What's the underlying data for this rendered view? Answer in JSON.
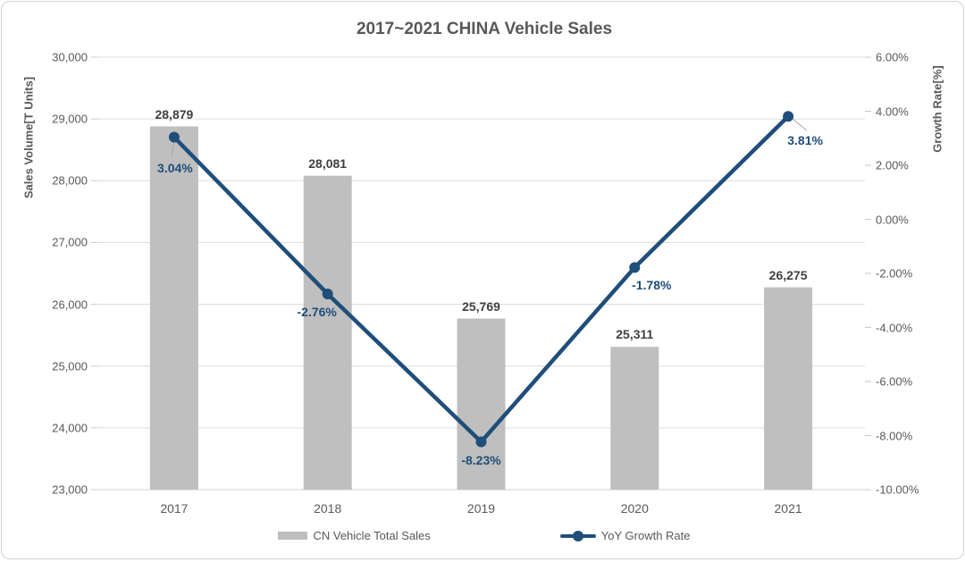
{
  "chart_data": {
    "type": "combo-bar-line",
    "title": "2017~2021 CHINA Vehicle Sales",
    "categories": [
      "2017",
      "2018",
      "2019",
      "2020",
      "2021"
    ],
    "series": [
      {
        "name": "CN Vehicle Total Sales",
        "type": "bar",
        "axis": "left",
        "values": [
          28879,
          28081,
          25769,
          25311,
          26275
        ],
        "data_labels": [
          "28,879",
          "28,081",
          "25,769",
          "25,311",
          "26,275"
        ],
        "color": "#bfbfbf"
      },
      {
        "name": "YoY Growth Rate",
        "type": "line",
        "axis": "right",
        "values": [
          3.04,
          -2.76,
          -8.23,
          -1.78,
          3.81
        ],
        "data_labels": [
          "3.04%",
          "-2.76%",
          "-8.23%",
          "-1.78%",
          "3.81%"
        ],
        "color": "#1f4e79"
      }
    ],
    "left_axis": {
      "title": "Sales Volume[T Units]",
      "min": 23000,
      "max": 30000,
      "step": 1000,
      "tick_labels": [
        "30,000",
        "29,000",
        "28,000",
        "27,000",
        "26,000",
        "25,000",
        "24,000",
        "23,000"
      ]
    },
    "right_axis": {
      "title": "Growth Rate[%]",
      "min": -10,
      "max": 6,
      "step": 2,
      "tick_labels": [
        "6.00%",
        "4.00%",
        "2.00%",
        "0.00%",
        "-2.00%",
        "-4.00%",
        "-6.00%",
        "-8.00%",
        "-10.00%"
      ]
    },
    "grid": true,
    "legend_position": "bottom",
    "colors": {
      "bar": "#bfbfbf",
      "line": "#1f4e79",
      "grid": "#dcdcdc",
      "axis_line": "#d9d9d9",
      "tick_mark": "#c8c8c8",
      "axis_text": "#595959",
      "bar_label": "#404040",
      "line_label": "#1f4e79",
      "title": "#595959",
      "leader_line": "#a6a6a6"
    }
  }
}
